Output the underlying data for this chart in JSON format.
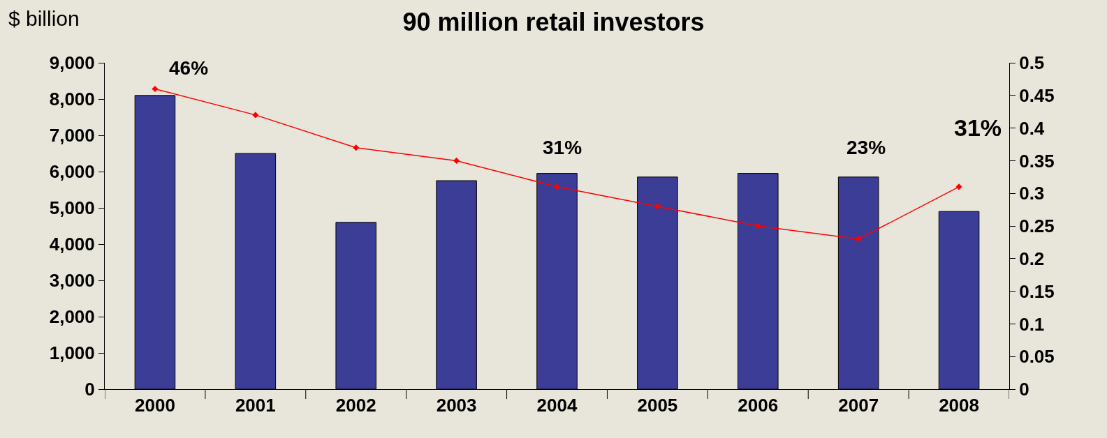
{
  "chart_data": {
    "type": "bar",
    "title": "90 million retail investors",
    "ylabel": "$ billion",
    "categories": [
      "2000",
      "2001",
      "2002",
      "2003",
      "2004",
      "2005",
      "2006",
      "2007",
      "2008"
    ],
    "series": [
      {
        "color": "#3b3d96",
        "values": [
          8100,
          6500,
          4600,
          5750,
          5950,
          5850,
          5950,
          5850,
          4900
        ]
      },
      {
        "type": "line",
        "axis": "y2",
        "color": "#ff0000",
        "marker": "diamond",
        "line_style": "solid",
        "values": [
          0.46,
          0.42,
          0.37,
          0.35,
          0.31,
          0.28,
          0.25,
          0.23,
          0.31
        ]
      }
    ],
    "ylim": [
      0,
      9000
    ],
    "yticks": [
      0,
      {
        "value": 1000,
        "label": "1,000"
      },
      {
        "value": 2000,
        "label": "2,000"
      },
      {
        "value": 3000,
        "label": "3,000"
      },
      {
        "value": 4000,
        "label": "4,000"
      },
      {
        "value": 5000,
        "label": "5,000"
      },
      {
        "value": 6000,
        "label": "6,000"
      },
      {
        "value": 7000,
        "label": "7,000"
      },
      {
        "value": 8000,
        "label": "8,000"
      },
      {
        "value": 9000,
        "label": "9,000"
      }
    ],
    "y2lim": [
      0,
      0.5
    ],
    "y2ticks": [
      0,
      0.05,
      0.1,
      0.15,
      0.2,
      0.25,
      0.3,
      0.35,
      0.4,
      0.45,
      0.5
    ],
    "annotations": [
      "46%",
      "31%",
      "23%",
      "31%"
    ],
    "grid": false
  }
}
